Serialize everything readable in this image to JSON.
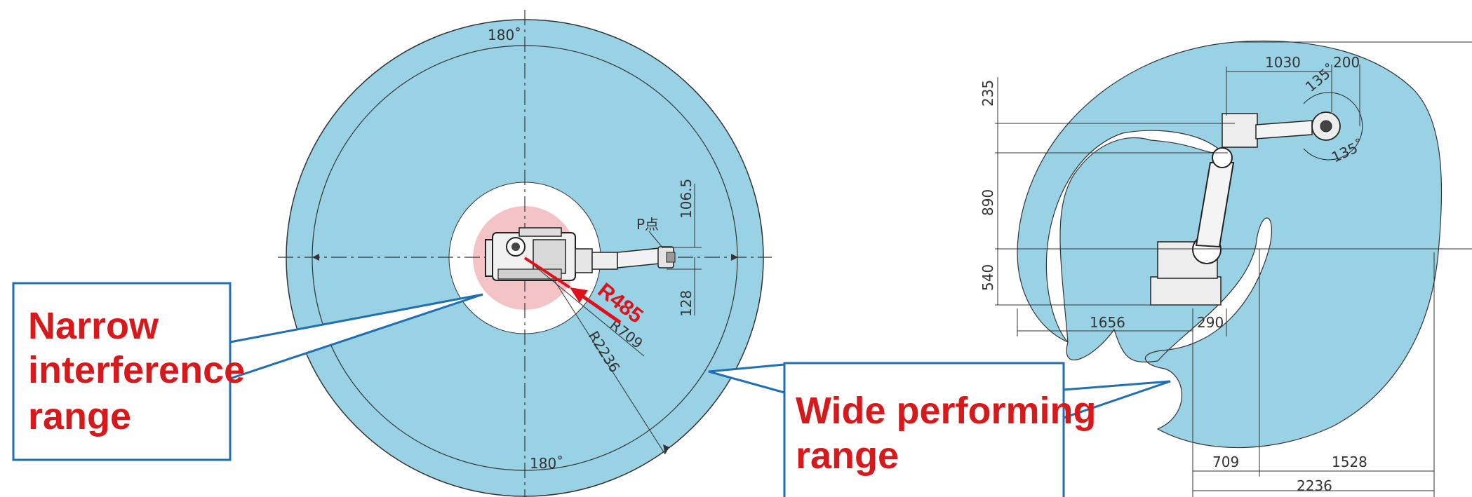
{
  "colors": {
    "reach_fill": "#99d2e4",
    "interference_fill": "#f3c3c6",
    "callout_border": "#1f6fb2",
    "callout_text": "#d7191c",
    "r485_arrow": "#e0101a"
  },
  "top_view": {
    "angle_top": "180˚",
    "angle_bottom": "180˚",
    "dim_106_5": "106.5",
    "dim_128": "128",
    "radius_485": "R485",
    "radius_709": "R709",
    "radius_2236": "R2236",
    "p_point": "P点"
  },
  "side_view": {
    "dim_1030": "1030",
    "dim_200": "200",
    "angle_135_top": "135˚",
    "angle_135_bottom": "135˚",
    "dim_235": "235",
    "dim_890": "890",
    "dim_540": "540",
    "dim_1656": "1656",
    "dim_290": "290",
    "dim_709": "709",
    "dim_1528": "1528",
    "dim_2236": "2236"
  },
  "callouts": {
    "narrow": [
      "Narrow",
      "interference",
      "range"
    ],
    "wide": [
      "Wide performing",
      "range"
    ]
  }
}
